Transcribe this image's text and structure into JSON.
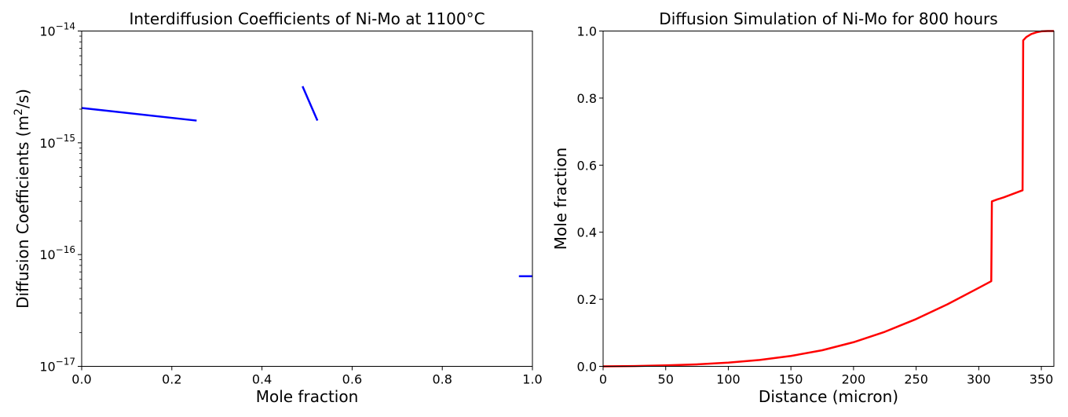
{
  "chart_data": [
    {
      "type": "line",
      "title": "Interdiffusion Coefficients of Ni-Mo at 1100°C",
      "xlabel": "Mole fraction",
      "ylabel_main": "Diffusion Coefficients (m",
      "ylabel_sup": "2",
      "ylabel_tail": "/s)",
      "yscale": "log",
      "xlim": [
        0.0,
        1.0
      ],
      "ylim": [
        1e-17,
        1e-14
      ],
      "xticks": [
        "0.0",
        "0.2",
        "0.4",
        "0.6",
        "0.8",
        "1.0"
      ],
      "xtick_values": [
        0.0,
        0.2,
        0.4,
        0.6,
        0.8,
        1.0
      ],
      "yticks": [
        {
          "value": 1e-17,
          "base": "10",
          "exp": "−17"
        },
        {
          "value": 1e-16,
          "base": "10",
          "exp": "−16"
        },
        {
          "value": 1e-15,
          "base": "10",
          "exp": "−15"
        },
        {
          "value": 1e-14,
          "base": "10",
          "exp": "−14"
        }
      ],
      "color": "#0000ff",
      "grid": false,
      "segments": [
        {
          "x": [
            0.0,
            0.255
          ],
          "y": [
            2.05e-15,
            1.58e-15
          ]
        },
        {
          "x": [
            0.49,
            0.523
          ],
          "y": [
            3.2e-15,
            1.58e-15
          ]
        },
        {
          "x": [
            0.97,
            1.0
          ],
          "y": [
            6.4e-17,
            6.4e-17
          ]
        }
      ]
    },
    {
      "type": "line",
      "title": "Diffusion Simulation of Ni-Mo for 800 hours",
      "xlabel": "Distance (micron)",
      "ylabel": "Mole fraction",
      "xlim": [
        0,
        360
      ],
      "ylim": [
        0.0,
        1.0
      ],
      "xticks": [
        "0",
        "50",
        "100",
        "150",
        "200",
        "250",
        "300",
        "350"
      ],
      "xtick_values": [
        0,
        50,
        100,
        150,
        200,
        250,
        300,
        350
      ],
      "yticks": [
        "0.0",
        "0.2",
        "0.4",
        "0.6",
        "0.8",
        "1.0"
      ],
      "ytick_values": [
        0.0,
        0.2,
        0.4,
        0.6,
        0.8,
        1.0
      ],
      "color": "#ff0000",
      "grid": false,
      "x": [
        0,
        25,
        50,
        75,
        100,
        125,
        150,
        175,
        200,
        225,
        250,
        275,
        300,
        310,
        310.5,
        315,
        320,
        325,
        330,
        335,
        335.5,
        338,
        342,
        346,
        350,
        355,
        360
      ],
      "y": [
        0.0,
        0.001,
        0.003,
        0.006,
        0.011,
        0.019,
        0.031,
        0.048,
        0.072,
        0.103,
        0.141,
        0.185,
        0.234,
        0.254,
        0.492,
        0.498,
        0.504,
        0.511,
        0.518,
        0.525,
        0.972,
        0.982,
        0.991,
        0.996,
        0.999,
        1.0,
        1.0
      ]
    }
  ]
}
